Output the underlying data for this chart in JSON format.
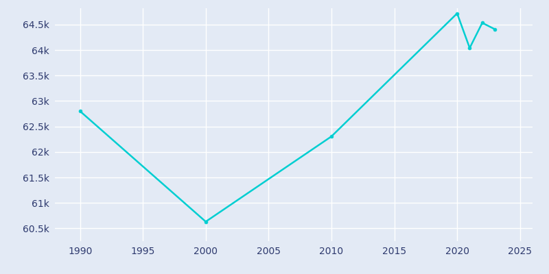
{
  "years": [
    1990,
    2000,
    2010,
    2020,
    2021,
    2022,
    2023
  ],
  "population": [
    62800,
    60632,
    62304,
    64718,
    64040,
    64533,
    64408
  ],
  "line_color": "#00CED1",
  "bg_color": "#E3EAF5",
  "grid_color": "#FFFFFF",
  "text_color": "#2E3A6E",
  "ylim": [
    60250,
    64820
  ],
  "xlim": [
    1988.0,
    2026.0
  ],
  "yticks": [
    60500,
    61000,
    61500,
    62000,
    62500,
    63000,
    63500,
    64000,
    64500
  ],
  "ytick_labels": [
    "60.5k",
    "61k",
    "61.5k",
    "62k",
    "62.5k",
    "63k",
    "63.5k",
    "64k",
    "64.5k"
  ],
  "xticks": [
    1990,
    1995,
    2000,
    2005,
    2010,
    2015,
    2020,
    2025
  ],
  "linewidth": 1.8,
  "markersize": 3.5,
  "figsize": [
    8.0,
    4.0
  ],
  "dpi": 100
}
